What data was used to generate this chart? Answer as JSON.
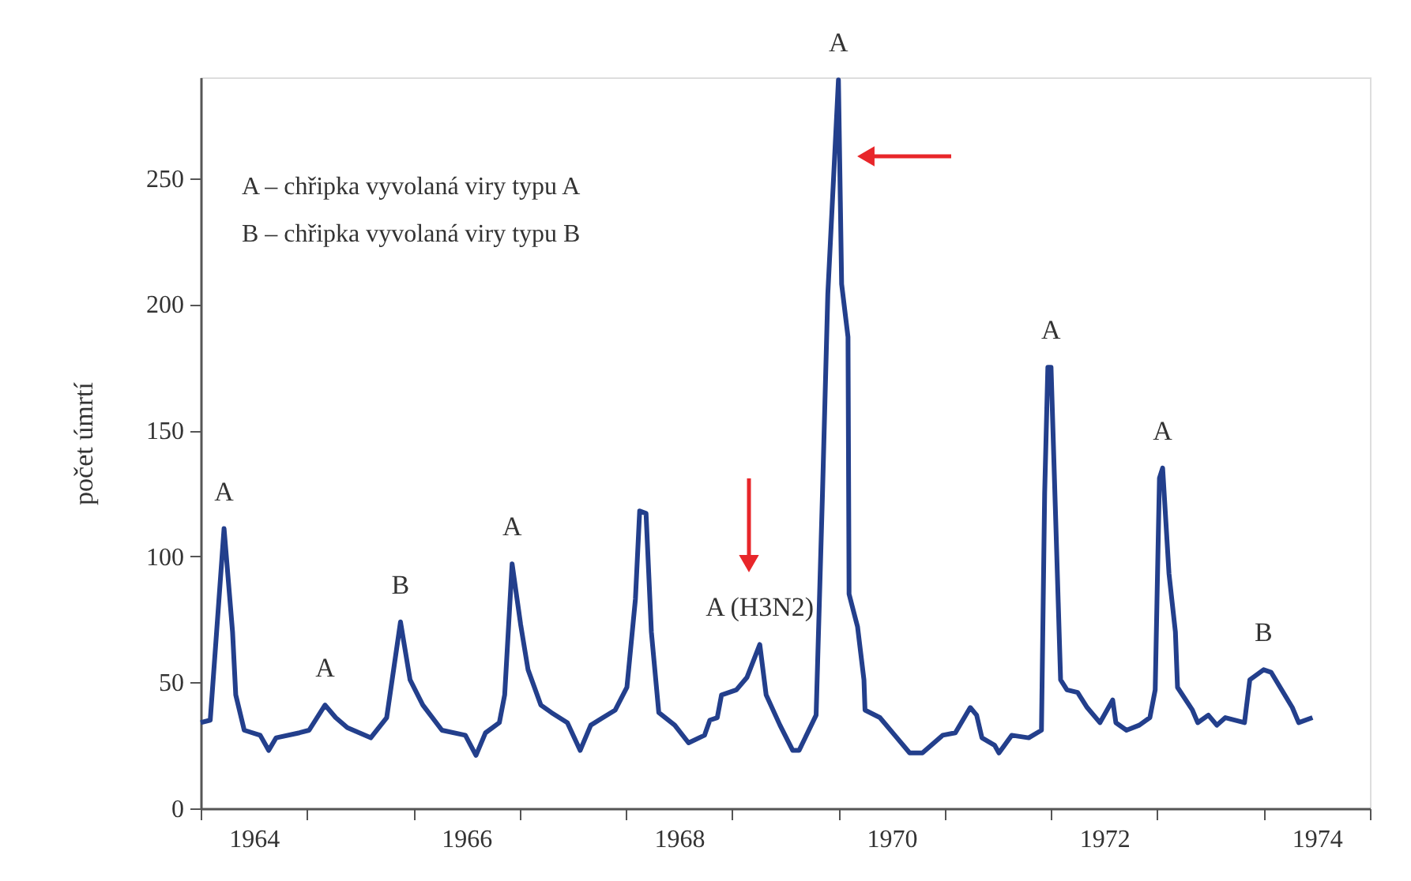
{
  "chart_data": {
    "type": "line",
    "ylabel": "počet úmrtí",
    "xlim": [
      1964,
      1975
    ],
    "ylim": [
      0,
      290
    ],
    "xticks": [
      {
        "value": 1964,
        "label": null
      },
      {
        "value": 1964.5,
        "label": "1964"
      },
      {
        "value": 1965,
        "label": null
      },
      {
        "value": 1966,
        "label": null
      },
      {
        "value": 1966.5,
        "label": "1966"
      },
      {
        "value": 1967,
        "label": null
      },
      {
        "value": 1968,
        "label": null
      },
      {
        "value": 1968.5,
        "label": "1968"
      },
      {
        "value": 1969,
        "label": null
      },
      {
        "value": 1970,
        "label": null
      },
      {
        "value": 1970.5,
        "label": "1970"
      },
      {
        "value": 1971,
        "label": null
      },
      {
        "value": 1972,
        "label": null
      },
      {
        "value": 1972.5,
        "label": "1972"
      },
      {
        "value": 1973,
        "label": null
      },
      {
        "value": 1974,
        "label": null
      },
      {
        "value": 1974.5,
        "label": "1974"
      },
      {
        "value": 1975,
        "label": null
      }
    ],
    "yticks": [
      0,
      50,
      100,
      150,
      200,
      250
    ],
    "grid": false,
    "marker": "none",
    "line_style": "solid",
    "series": [
      {
        "color": "#233f8c",
        "x": [
          1964.0,
          1964.09,
          1964.15,
          1964.22,
          1964.3,
          1964.33,
          1964.41,
          1964.56,
          1964.64,
          1964.71,
          1964.93,
          1965.02,
          1965.17,
          1965.27,
          1965.38,
          1965.6,
          1965.75,
          1965.88,
          1965.97,
          1966.09,
          1966.27,
          1966.49,
          1966.59,
          1966.68,
          1966.81,
          1966.86,
          1966.93,
          1967.01,
          1967.08,
          1967.2,
          1967.3,
          1967.45,
          1967.57,
          1967.67,
          1967.9,
          1968.01,
          1968.09,
          1968.13,
          1968.19,
          1968.24,
          1968.31,
          1968.46,
          1968.59,
          1968.74,
          1968.79,
          1968.86,
          1968.9,
          1969.04,
          1969.14,
          1969.26,
          1969.32,
          1969.45,
          1969.57,
          1969.63,
          1969.79,
          1969.85,
          1969.9,
          1970.0,
          1970.03,
          1970.09,
          1970.1,
          1970.18,
          1970.24,
          1970.25,
          1970.39,
          1970.53,
          1970.67,
          1970.79,
          1970.98,
          1971.1,
          1971.24,
          1971.3,
          1971.35,
          1971.47,
          1971.51,
          1971.63,
          1971.79,
          1971.91,
          1971.94,
          1971.97,
          1972.0,
          1972.04,
          1972.09,
          1972.15,
          1972.25,
          1972.34,
          1972.46,
          1972.58,
          1972.61,
          1972.71,
          1972.83,
          1972.93,
          1972.98,
          1973.02,
          1973.05,
          1973.11,
          1973.17,
          1973.19,
          1973.33,
          1973.38,
          1973.48,
          1973.56,
          1973.64,
          1973.82,
          1973.87,
          1974.0,
          1974.07,
          1974.27,
          1974.33,
          1974.46
        ],
        "values": [
          34,
          35,
          70,
          111,
          70,
          45,
          31,
          29,
          23,
          28,
          30,
          31,
          41,
          36,
          32,
          28,
          36,
          74,
          51,
          41,
          31,
          29,
          21,
          30,
          34,
          45,
          97,
          73,
          55,
          41,
          38,
          34,
          23,
          33,
          39,
          48,
          83,
          118,
          117,
          70,
          38,
          33,
          26,
          29,
          35,
          36,
          45,
          47,
          52,
          65,
          45,
          33,
          23,
          23,
          37,
          125,
          204,
          289,
          208,
          187,
          85,
          72,
          51,
          39,
          36,
          29,
          22,
          22,
          29,
          30,
          40,
          37,
          28,
          25,
          22,
          29,
          28,
          31,
          125,
          175,
          175,
          120,
          51,
          47,
          46,
          40,
          34,
          43,
          34,
          31,
          33,
          36,
          47,
          131,
          135,
          93,
          70,
          48,
          39,
          34,
          37,
          33,
          36,
          34,
          51,
          55,
          54,
          40,
          34,
          36
        ]
      }
    ],
    "annotations": [
      "A – chřipka vyvolaná viry typu A",
      "B – chřipka vyvolaná viry typu B",
      {
        "text": "A",
        "x": 1964.22,
        "y": 111
      },
      {
        "text": "A",
        "x": 1965.17,
        "y": 41
      },
      {
        "text": "B",
        "x": 1965.88,
        "y": 74
      },
      {
        "text": "A",
        "x": 1966.93,
        "y": 97
      },
      {
        "text": "A (H3N2)",
        "x": 1969.26,
        "y": 65
      },
      {
        "text": "A",
        "x": 1970.0,
        "y": 289
      },
      {
        "text": "A",
        "x": 1972.0,
        "y": 175
      },
      {
        "text": "A",
        "x": 1973.05,
        "y": 135
      },
      {
        "text": "B",
        "x": 1974.0,
        "y": 55
      }
    ]
  }
}
